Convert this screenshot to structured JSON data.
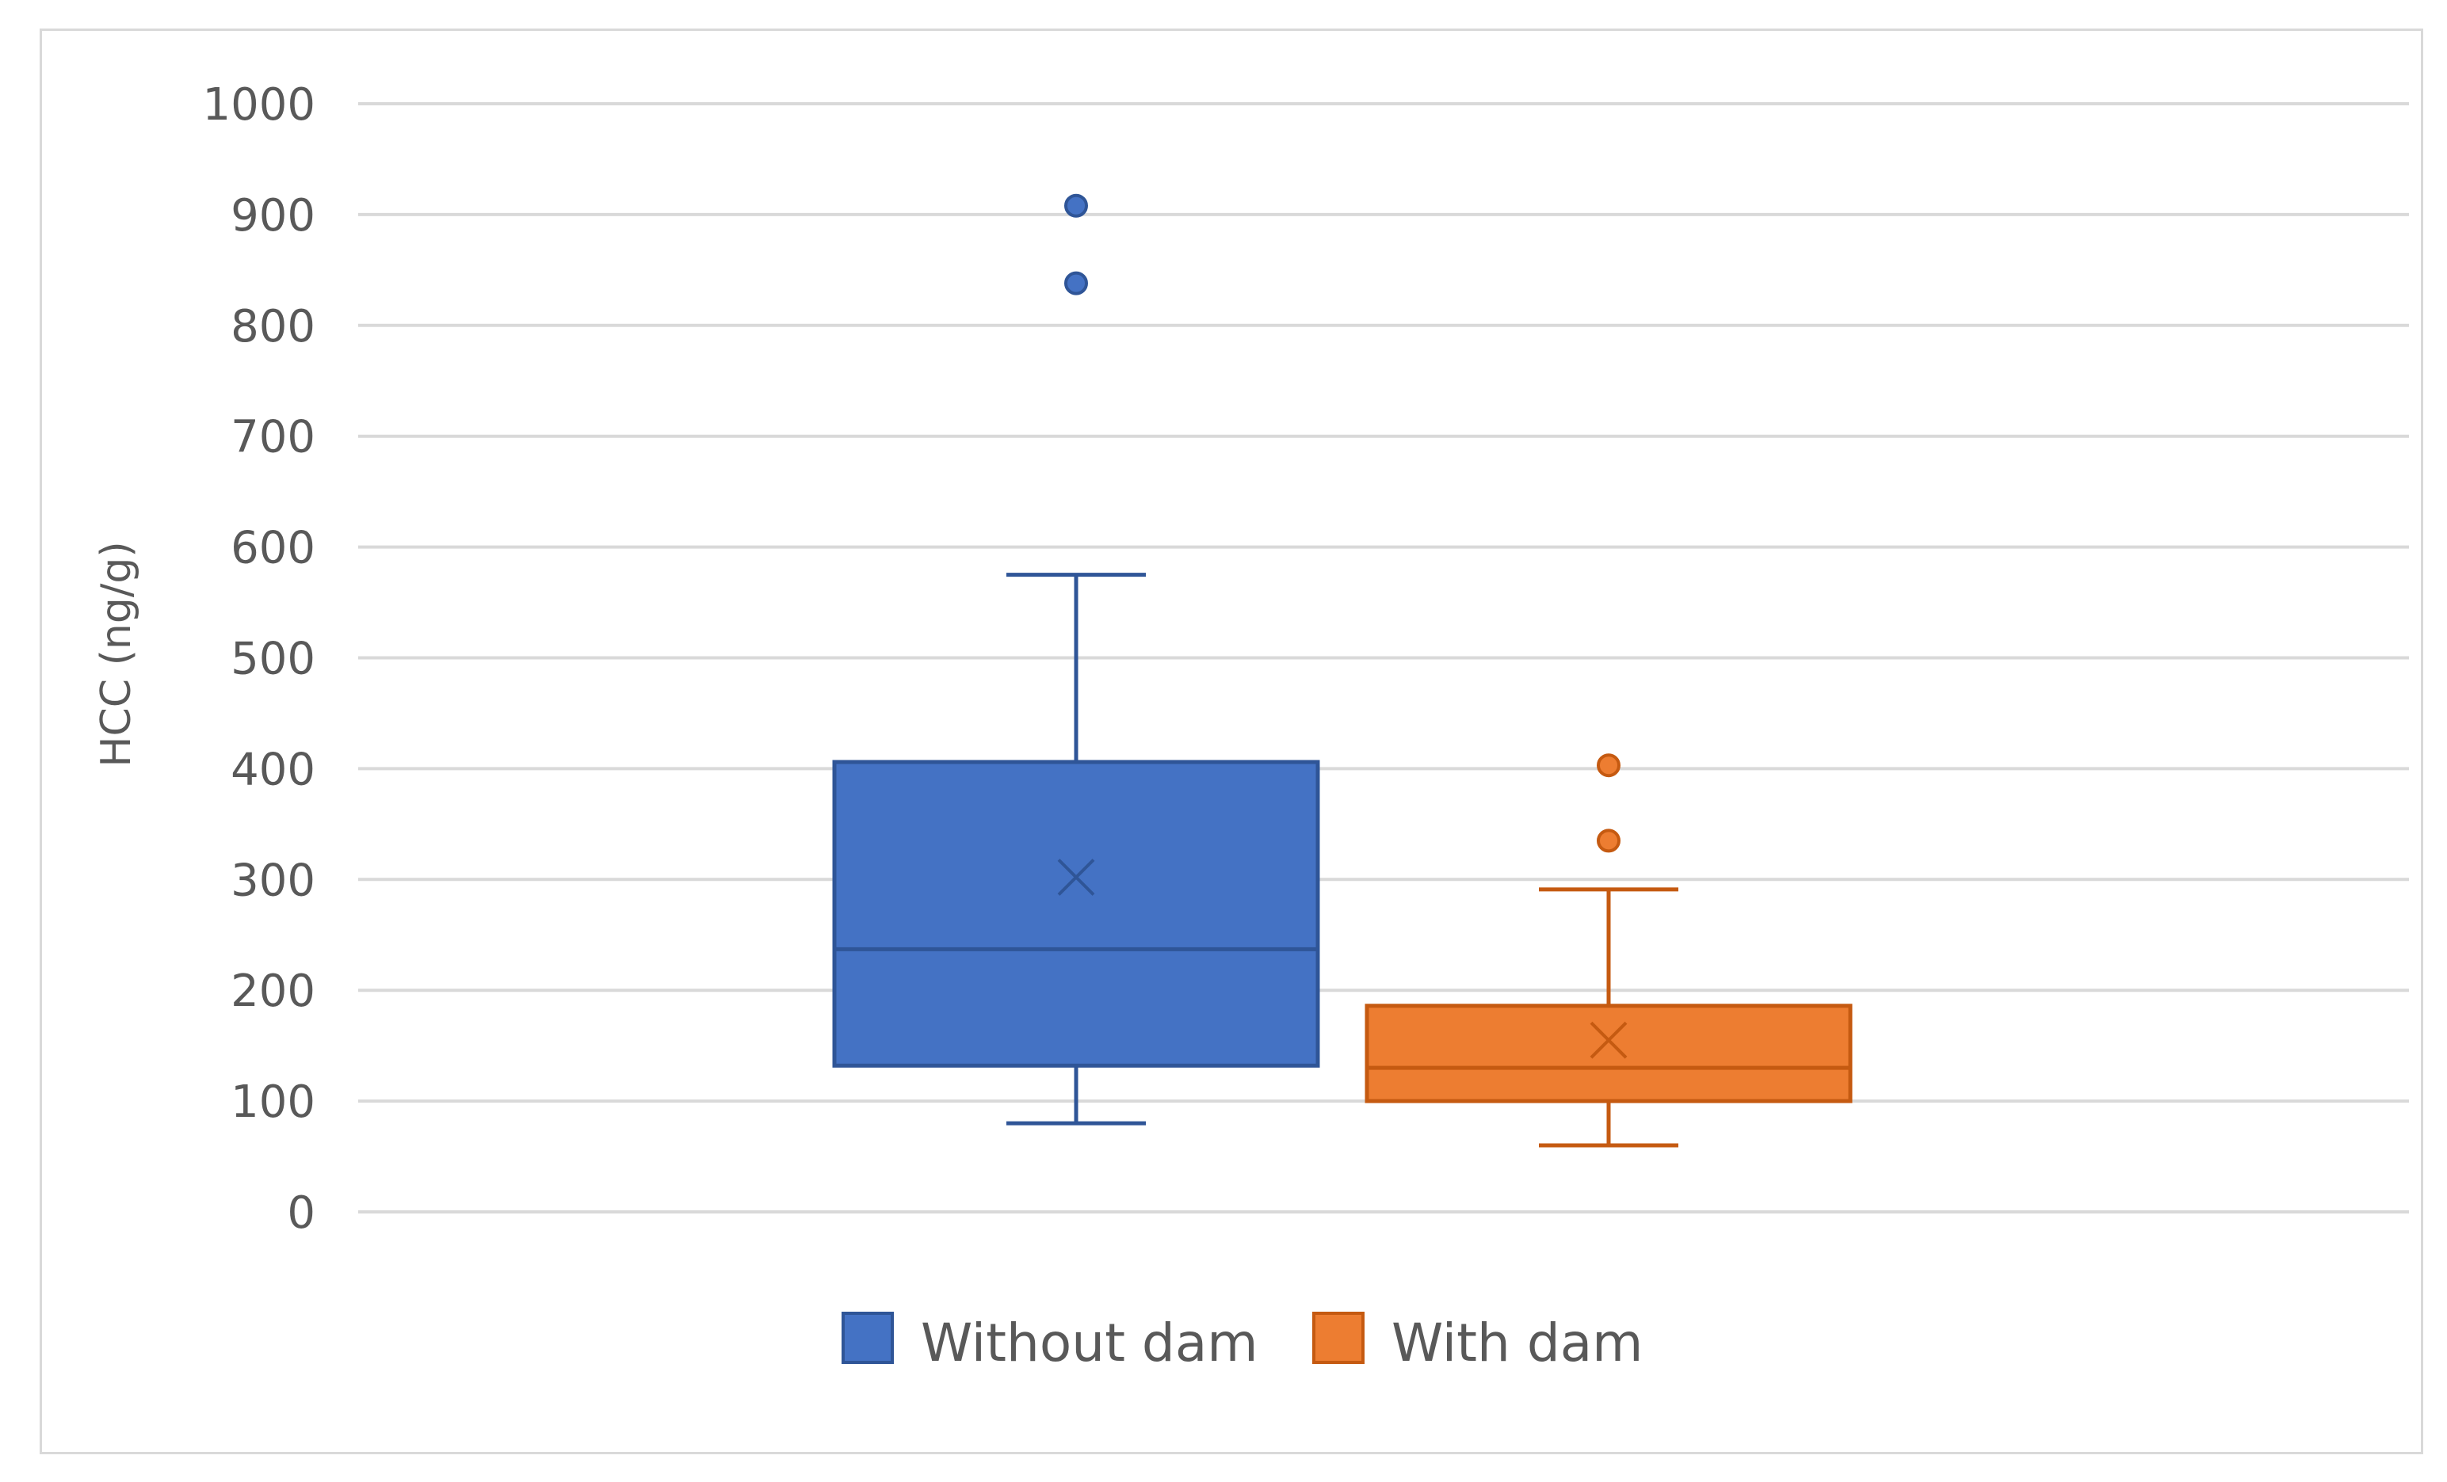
{
  "chart_data": {
    "type": "box",
    "ylabel": "HCC (ng/g)",
    "xlabel": "",
    "ylim": [
      0,
      1000
    ],
    "yticks": [
      "0",
      "100",
      "200",
      "300",
      "400",
      "500",
      "600",
      "700",
      "800",
      "900",
      "1000"
    ],
    "grid": true,
    "legend_position": "bottom",
    "series": [
      {
        "name": "Without dam",
        "color": "#4472c4",
        "min": 80,
        "q1": 132,
        "median": 237,
        "q3": 406,
        "max": 575,
        "mean": 302,
        "outliers": [
          838,
          908
        ]
      },
      {
        "name": "With dam",
        "color": "#ed7d31",
        "min": 60,
        "q1": 100,
        "median": 130,
        "q3": 186,
        "max": 291,
        "mean": 155,
        "outliers": [
          335,
          403
        ]
      }
    ]
  }
}
